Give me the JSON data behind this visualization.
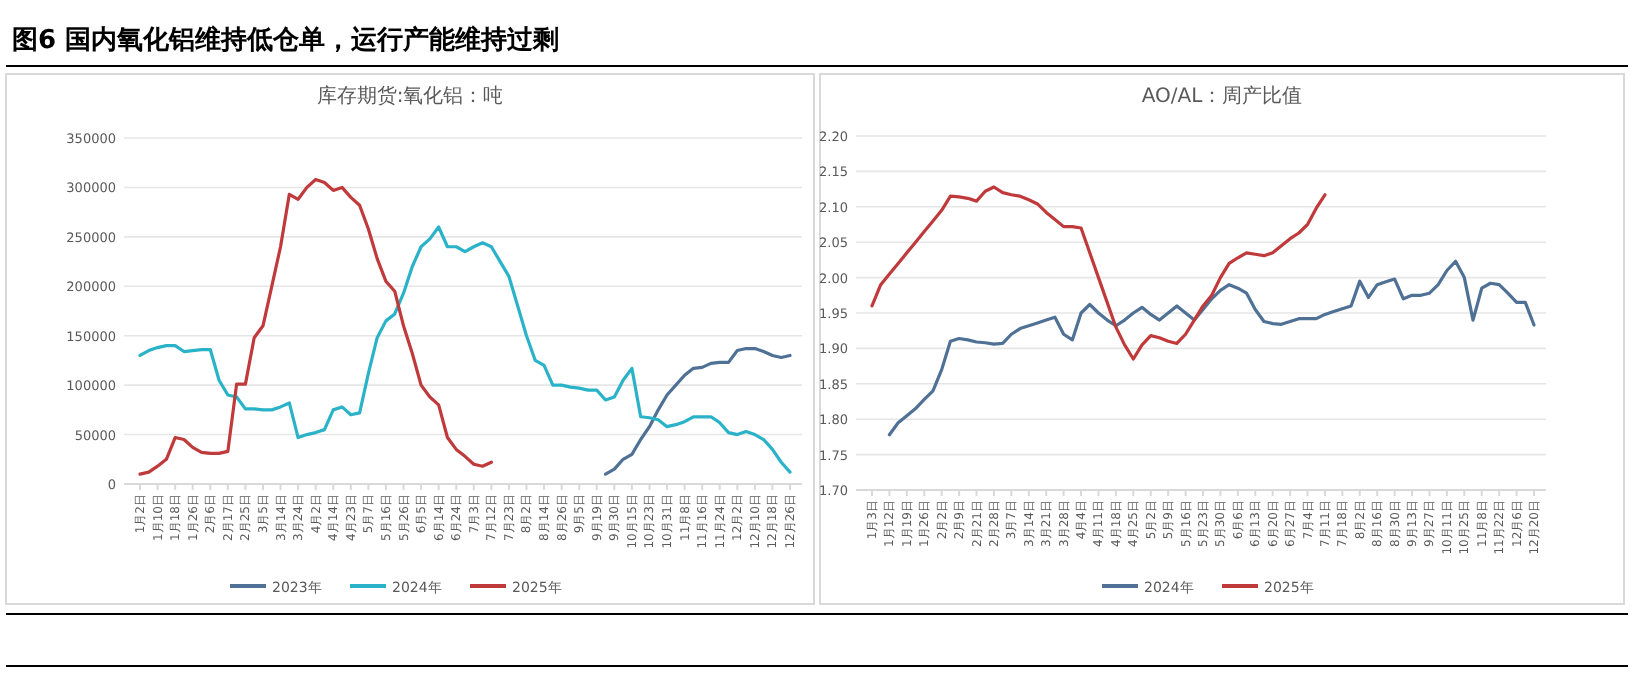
{
  "chart_data": [
    {
      "type": "other",
      "title": "图6 国内氧化铝维持低仓单，运行产能维持过剩"
    },
    {
      "type": "line",
      "title": "库存期货:氧化铝：吨",
      "grid": "y",
      "legend": "bottom",
      "marker": "none",
      "line_style": "solid",
      "categories": [
        "1月2日",
        null,
        "1月10日",
        null,
        "1月18日",
        null,
        "1月26日",
        null,
        "2月6日",
        null,
        "2月17日",
        null,
        "2月25日",
        null,
        "3月5日",
        null,
        "3月14日",
        null,
        "3月24日",
        null,
        "4月2日",
        null,
        "4月14日",
        null,
        "4月23日",
        null,
        "5月7日",
        null,
        "5月16日",
        null,
        "5月26日",
        null,
        "6月5日",
        null,
        "6月14日",
        null,
        "6月24日",
        null,
        "7月3日",
        null,
        "7月12日",
        null,
        "7月23日",
        null,
        "8月2日",
        null,
        "8月14日",
        null,
        "8月26日",
        null,
        "9月5日",
        null,
        "9月19日",
        null,
        "9月30日",
        null,
        "10月15日",
        null,
        "10月23日",
        null,
        "10月31日",
        null,
        "11月8日",
        null,
        "11月16日",
        null,
        "11月24日",
        null,
        "12月2日",
        null,
        "12月10日",
        null,
        "12月18日",
        null,
        "12月26日"
      ],
      "ylim": [
        0,
        350000
      ],
      "yticks": [
        0,
        50000,
        100000,
        150000,
        200000,
        250000,
        300000,
        350000
      ],
      "series": [
        {
          "name": "2023年",
          "color": "#4f7196",
          "values": [
            null,
            null,
            null,
            null,
            null,
            null,
            null,
            null,
            null,
            null,
            null,
            null,
            null,
            null,
            null,
            null,
            null,
            null,
            null,
            null,
            null,
            null,
            null,
            null,
            null,
            null,
            null,
            null,
            null,
            null,
            null,
            null,
            null,
            null,
            null,
            null,
            null,
            null,
            null,
            null,
            null,
            null,
            null,
            null,
            null,
            null,
            null,
            null,
            null,
            null,
            null,
            null,
            null,
            10000,
            15000,
            25000,
            30000,
            45000,
            58000,
            75000,
            90000,
            100000,
            110000,
            117000,
            118000,
            122000,
            123000,
            123000,
            135000,
            137000,
            137000,
            134000,
            130000,
            128000,
            130000
          ]
        },
        {
          "name": "2024年",
          "color": "#2ab3c8",
          "values": [
            130000,
            135000,
            138000,
            140000,
            140000,
            134000,
            135000,
            136000,
            136000,
            105000,
            90000,
            88000,
            76000,
            76000,
            75000,
            75000,
            78000,
            82000,
            47000,
            50000,
            52000,
            55000,
            75000,
            78000,
            70000,
            72000,
            112000,
            148000,
            165000,
            172000,
            193000,
            220000,
            240000,
            248000,
            260000,
            240000,
            240000,
            235000,
            240000,
            244000,
            240000,
            225000,
            210000,
            180000,
            150000,
            125000,
            120000,
            100000,
            100000,
            98000,
            97000,
            95000,
            95000,
            85000,
            88000,
            105000,
            117000,
            68000,
            67000,
            65000,
            58000,
            60000,
            63000,
            68000,
            68000,
            68000,
            62000,
            52000,
            50000,
            53000,
            50000,
            45000,
            35000,
            22000,
            12000
          ]
        },
        {
          "name": "2025年",
          "color": "#c0393b",
          "values": [
            10000,
            12000,
            18000,
            25000,
            47000,
            45000,
            37000,
            32000,
            31000,
            31000,
            33000,
            101000,
            101000,
            148000,
            160000,
            200000,
            240000,
            293000,
            288000,
            300000,
            308000,
            305000,
            297000,
            300000,
            290000,
            282000,
            258000,
            228000,
            205000,
            195000,
            160000,
            132000,
            100000,
            88000,
            80000,
            47000,
            35000,
            28000,
            20000,
            18000,
            22000,
            null,
            null,
            null,
            null,
            null,
            null,
            null,
            null,
            null,
            null,
            null,
            null,
            null,
            null,
            null,
            null,
            null,
            null,
            null,
            null,
            null,
            null,
            null,
            null,
            null,
            null,
            null,
            null,
            null,
            null,
            null,
            null,
            null,
            null
          ]
        }
      ]
    },
    {
      "type": "line",
      "title": "AO/AL：周产比值",
      "grid": "y",
      "legend": "bottom",
      "marker": "none",
      "line_style": "solid",
      "categories": [
        "1月3日",
        null,
        "1月12日",
        null,
        "1月19日",
        null,
        "1月26日",
        null,
        "2月2日",
        null,
        "2月9日",
        null,
        "2月21日",
        null,
        "2月28日",
        null,
        "3月7日",
        null,
        "3月14日",
        null,
        "3月21日",
        null,
        "3月28日",
        null,
        "4月4日",
        null,
        "4月11日",
        null,
        "4月18日",
        null,
        "4月25日",
        null,
        "5月2日",
        null,
        "5月9日",
        null,
        "5月16日",
        null,
        "5月23日",
        null,
        "5月30日",
        null,
        "6月6日",
        null,
        "6月13日",
        null,
        "6月20日",
        null,
        "6月27日",
        null,
        "7月4日",
        null,
        "7月11日",
        null,
        "7月18日",
        null,
        "8月2日",
        null,
        "8月16日",
        null,
        "8月30日",
        null,
        "9月13日",
        null,
        "9月27日",
        null,
        "10月11日",
        null,
        "10月25日",
        null,
        "11月8日",
        null,
        "11月22日",
        null,
        "12月6日",
        null,
        "12月20日"
      ],
      "ylim": [
        1.7,
        2.2
      ],
      "yticks": [
        {
          "value": 1.7,
          "label": "1.70"
        },
        {
          "value": 1.75,
          "label": "1.75"
        },
        {
          "value": 1.8,
          "label": "1.80"
        },
        {
          "value": 1.85,
          "label": "1.85"
        },
        {
          "value": 1.9,
          "label": "1.90"
        },
        {
          "value": 1.95,
          "label": "1.95"
        },
        {
          "value": 2.0,
          "label": "2.00"
        },
        {
          "value": 2.05,
          "label": "2.05"
        },
        {
          "value": 2.1,
          "label": "2.10"
        },
        {
          "value": 2.15,
          "label": "2.15"
        },
        {
          "value": 2.2,
          "label": "2.20"
        }
      ],
      "series": [
        {
          "name": "2024年",
          "color": "#4f7196",
          "values": [
            null,
            null,
            1.778,
            1.795,
            1.805,
            1.815,
            1.828,
            1.84,
            1.87,
            1.91,
            1.914,
            1.912,
            1.909,
            1.908,
            1.906,
            1.907,
            1.92,
            1.928,
            1.932,
            1.936,
            1.94,
            1.944,
            1.92,
            1.912,
            1.95,
            1.962,
            1.95,
            1.94,
            1.932,
            1.94,
            1.95,
            1.958,
            1.948,
            1.94,
            1.95,
            1.96,
            1.95,
            1.94,
            1.955,
            1.97,
            1.982,
            1.99,
            1.985,
            1.978,
            1.955,
            1.938,
            1.935,
            1.934,
            1.938,
            1.942,
            1.942,
            1.942,
            1.948,
            1.952,
            1.956,
            1.96,
            1.995,
            1.972,
            1.99,
            1.994,
            1.998,
            1.97,
            1.975,
            1.975,
            1.978,
            1.99,
            2.01,
            2.023,
            2.0,
            1.94,
            1.985,
            1.992,
            1.99,
            1.978,
            1.965,
            1.965,
            1.933
          ]
        },
        {
          "name": "2025年",
          "color": "#c0393b",
          "values": [
            1.96,
            1.99,
            2.005,
            2.02,
            2.035,
            2.05,
            2.065,
            2.08,
            2.095,
            2.115,
            2.114,
            2.112,
            2.108,
            2.122,
            2.128,
            2.12,
            2.117,
            2.115,
            2.11,
            2.104,
            2.092,
            2.082,
            2.072,
            2.072,
            2.07,
            2.035,
            2.0,
            1.965,
            1.93,
            1.905,
            1.885,
            1.905,
            1.918,
            1.915,
            1.91,
            1.907,
            1.92,
            1.94,
            1.96,
            1.975,
            2.0,
            2.02,
            2.028,
            2.035,
            2.033,
            2.031,
            2.035,
            2.045,
            2.055,
            2.063,
            2.075,
            2.098,
            2.117,
            null,
            null,
            null,
            null,
            null,
            null,
            null,
            null,
            null,
            null,
            null,
            null,
            null,
            null,
            null,
            null,
            null,
            null,
            null,
            null,
            null,
            null,
            null,
            null
          ]
        }
      ]
    }
  ]
}
